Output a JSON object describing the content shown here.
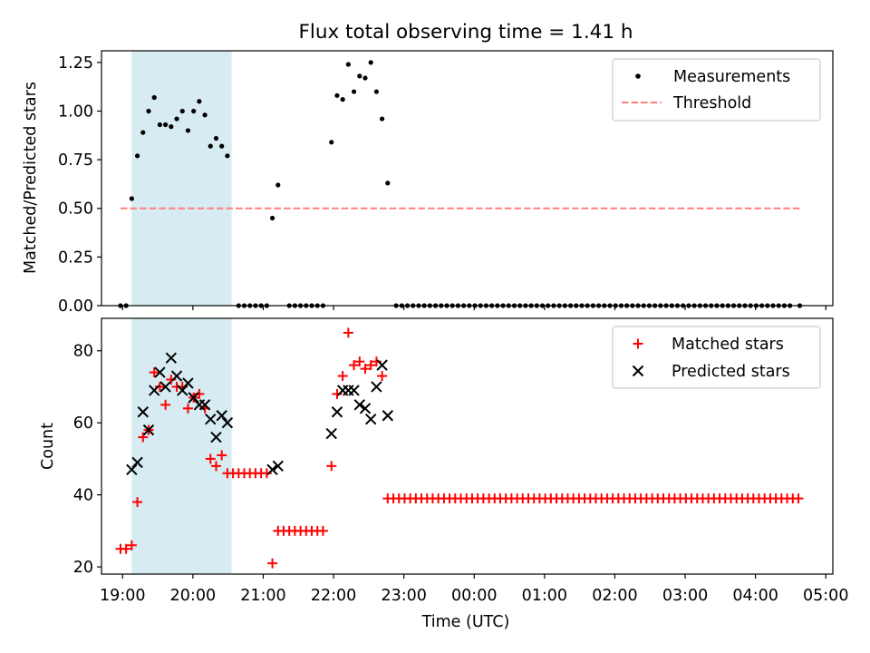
{
  "colors": {
    "span": "#add8e6",
    "measurement": "#000000",
    "threshold": "#ff7f7f",
    "matched": "#ff0000",
    "predicted": "#000000"
  },
  "chart_data": [
    {
      "type": "scatter",
      "title": "Flux total observing time = 1.41 h",
      "xlabel": "",
      "ylabel": "Matched/Predicted stars",
      "xlim": [
        18.7,
        29.1
      ],
      "ylim": [
        0.0,
        1.31
      ],
      "x_ticks": [
        19,
        20,
        21,
        22,
        23,
        24,
        25,
        26,
        27,
        28,
        29
      ],
      "y_ticks": [
        0.0,
        0.25,
        0.5,
        0.75,
        1.0,
        1.25
      ],
      "y_tick_labels": [
        "0.00",
        "0.25",
        "0.50",
        "0.75",
        "1.00",
        "1.25"
      ],
      "highlight_span": [
        19.13,
        20.55
      ],
      "legend": {
        "position": "upper right",
        "entries": [
          "Measurements",
          "Threshold"
        ]
      },
      "threshold": {
        "name": "Threshold",
        "value": 0.5,
        "x_range": [
          18.97,
          28.63
        ]
      },
      "series": [
        {
          "name": "Measurements",
          "x": [
            18.97,
            19.05,
            19.13,
            19.21,
            19.29,
            19.37,
            19.45,
            19.53,
            19.61,
            19.69,
            19.77,
            19.85,
            19.93,
            20.01,
            20.09,
            20.17,
            20.25,
            20.33,
            20.41,
            20.49,
            21.13,
            21.21,
            21.97,
            22.05,
            22.13,
            22.21,
            22.29,
            22.37,
            22.45,
            22.53,
            22.61,
            22.69,
            22.77,
            20.65,
            20.73,
            20.81,
            20.89,
            20.97,
            21.05,
            21.37,
            21.45,
            21.53,
            21.61,
            21.69,
            21.77,
            21.85,
            22.89,
            22.97,
            23.05,
            23.13,
            23.21,
            23.29,
            23.37,
            23.45,
            23.53,
            23.61,
            23.69,
            23.77,
            23.85,
            23.93,
            24.01,
            24.09,
            24.17,
            24.25,
            24.33,
            24.41,
            24.49,
            24.57,
            24.65,
            24.73,
            24.81,
            24.89,
            24.97,
            25.05,
            25.13,
            25.21,
            25.29,
            25.37,
            25.45,
            25.53,
            25.61,
            25.69,
            25.77,
            25.85,
            25.93,
            26.01,
            26.09,
            26.17,
            26.25,
            26.33,
            26.41,
            26.49,
            26.57,
            26.65,
            26.73,
            26.81,
            26.89,
            26.97,
            27.05,
            27.13,
            27.21,
            27.29,
            27.37,
            27.45,
            27.53,
            27.61,
            27.69,
            27.77,
            27.85,
            27.93,
            28.01,
            28.09,
            28.17,
            28.25,
            28.33,
            28.41,
            28.49,
            28.63
          ],
          "y": [
            0.0,
            0.0,
            0.55,
            0.77,
            0.89,
            1.0,
            1.07,
            0.93,
            0.93,
            0.92,
            0.96,
            1.0,
            0.9,
            1.0,
            1.05,
            0.98,
            0.82,
            0.86,
            0.82,
            0.77,
            0.45,
            0.62,
            0.84,
            1.08,
            1.06,
            1.24,
            1.1,
            1.18,
            1.17,
            1.25,
            1.1,
            0.96,
            0.63,
            0.0,
            0.0,
            0.0,
            0.0,
            0.0,
            0.0,
            0.0,
            0.0,
            0.0,
            0.0,
            0.0,
            0.0,
            0.0,
            0.0,
            0.0,
            0.0,
            0.0,
            0.0,
            0.0,
            0.0,
            0.0,
            0.0,
            0.0,
            0.0,
            0.0,
            0.0,
            0.0,
            0.0,
            0.0,
            0.0,
            0.0,
            0.0,
            0.0,
            0.0,
            0.0,
            0.0,
            0.0,
            0.0,
            0.0,
            0.0,
            0.0,
            0.0,
            0.0,
            0.0,
            0.0,
            0.0,
            0.0,
            0.0,
            0.0,
            0.0,
            0.0,
            0.0,
            0.0,
            0.0,
            0.0,
            0.0,
            0.0,
            0.0,
            0.0,
            0.0,
            0.0,
            0.0,
            0.0,
            0.0,
            0.0,
            0.0,
            0.0,
            0.0,
            0.0,
            0.0,
            0.0,
            0.0,
            0.0,
            0.0,
            0.0,
            0.0,
            0.0,
            0.0,
            0.0,
            0.0,
            0.0,
            0.0,
            0.0,
            0.0,
            0.0
          ]
        }
      ]
    },
    {
      "type": "scatter",
      "title": "",
      "xlabel": "Time (UTC)",
      "ylabel": "Count",
      "xlim": [
        18.7,
        29.1
      ],
      "ylim": [
        18,
        89
      ],
      "x_ticks": [
        19,
        20,
        21,
        22,
        23,
        24,
        25,
        26,
        27,
        28,
        29
      ],
      "x_tick_labels": [
        "19:00",
        "20:00",
        "21:00",
        "22:00",
        "23:00",
        "00:00",
        "01:00",
        "02:00",
        "03:00",
        "04:00",
        "05:00"
      ],
      "y_ticks": [
        20,
        40,
        60,
        80
      ],
      "y_tick_labels": [
        "20",
        "40",
        "60",
        "80"
      ],
      "highlight_span": [
        19.13,
        20.55
      ],
      "legend": {
        "position": "upper right",
        "entries": [
          "Matched stars",
          "Predicted stars"
        ]
      },
      "series": [
        {
          "name": "Matched stars",
          "x": [
            18.97,
            19.05,
            19.13,
            19.21,
            19.29,
            19.37,
            19.45,
            19.53,
            19.61,
            19.69,
            19.77,
            19.85,
            19.93,
            20.01,
            20.09,
            20.17,
            20.25,
            20.33,
            20.41,
            20.49,
            20.57,
            20.65,
            20.73,
            20.81,
            20.89,
            20.97,
            21.05,
            21.13,
            21.21,
            21.29,
            21.37,
            21.45,
            21.53,
            21.61,
            21.69,
            21.77,
            21.85,
            21.97,
            22.05,
            22.13,
            22.21,
            22.29,
            22.37,
            22.45,
            22.53,
            22.61,
            22.69,
            22.77,
            22.85,
            22.93,
            23.01,
            23.09,
            23.17,
            23.25,
            23.33,
            23.41,
            23.49,
            23.57,
            23.65,
            23.73,
            23.81,
            23.89,
            23.97,
            24.05,
            24.13,
            24.21,
            24.29,
            24.37,
            24.45,
            24.53,
            24.61,
            24.69,
            24.77,
            24.85,
            24.93,
            25.01,
            25.09,
            25.17,
            25.25,
            25.33,
            25.41,
            25.49,
            25.57,
            25.65,
            25.73,
            25.81,
            25.89,
            25.97,
            26.05,
            26.13,
            26.21,
            26.29,
            26.37,
            26.45,
            26.53,
            26.61,
            26.69,
            26.77,
            26.85,
            26.93,
            27.01,
            27.09,
            27.17,
            27.25,
            27.33,
            27.41,
            27.49,
            27.57,
            27.65,
            27.73,
            27.81,
            27.89,
            27.97,
            28.05,
            28.13,
            28.21,
            28.29,
            28.37,
            28.45,
            28.53,
            28.61
          ],
          "y": [
            25,
            25,
            26,
            38,
            56,
            58,
            74,
            70,
            65,
            72,
            70,
            70,
            64,
            67,
            68,
            64,
            50,
            48,
            51,
            46,
            46,
            46,
            46,
            46,
            46,
            46,
            46,
            21,
            30,
            30,
            30,
            30,
            30,
            30,
            30,
            30,
            30,
            48,
            68,
            73,
            85,
            76,
            77,
            75,
            76,
            77,
            73,
            39,
            39,
            39,
            39,
            39,
            39,
            39,
            39,
            39,
            39,
            39,
            39,
            39,
            39,
            39,
            39,
            39,
            39,
            39,
            39,
            39,
            39,
            39,
            39,
            39,
            39,
            39,
            39,
            39,
            39,
            39,
            39,
            39,
            39,
            39,
            39,
            39,
            39,
            39,
            39,
            39,
            39,
            39,
            39,
            39,
            39,
            39,
            39,
            39,
            39,
            39,
            39,
            39,
            39,
            39,
            39,
            39,
            39,
            39,
            39,
            39,
            39,
            39,
            39,
            39,
            39,
            39,
            39,
            39,
            39,
            39,
            39,
            39,
            39
          ]
        },
        {
          "name": "Predicted stars",
          "x": [
            19.13,
            19.21,
            19.29,
            19.37,
            19.45,
            19.53,
            19.61,
            19.69,
            19.77,
            19.85,
            19.93,
            20.01,
            20.09,
            20.17,
            20.25,
            20.33,
            20.41,
            20.49,
            21.13,
            21.21,
            21.97,
            22.05,
            22.13,
            22.21,
            22.29,
            22.37,
            22.45,
            22.53,
            22.61,
            22.69,
            22.77
          ],
          "y": [
            47,
            49,
            63,
            58,
            69,
            74,
            70,
            78,
            73,
            69,
            71,
            67,
            65,
            65,
            61,
            56,
            62,
            60,
            47,
            48,
            57,
            63,
            69,
            69,
            69,
            65,
            64,
            61,
            70,
            76,
            62
          ]
        }
      ]
    }
  ]
}
